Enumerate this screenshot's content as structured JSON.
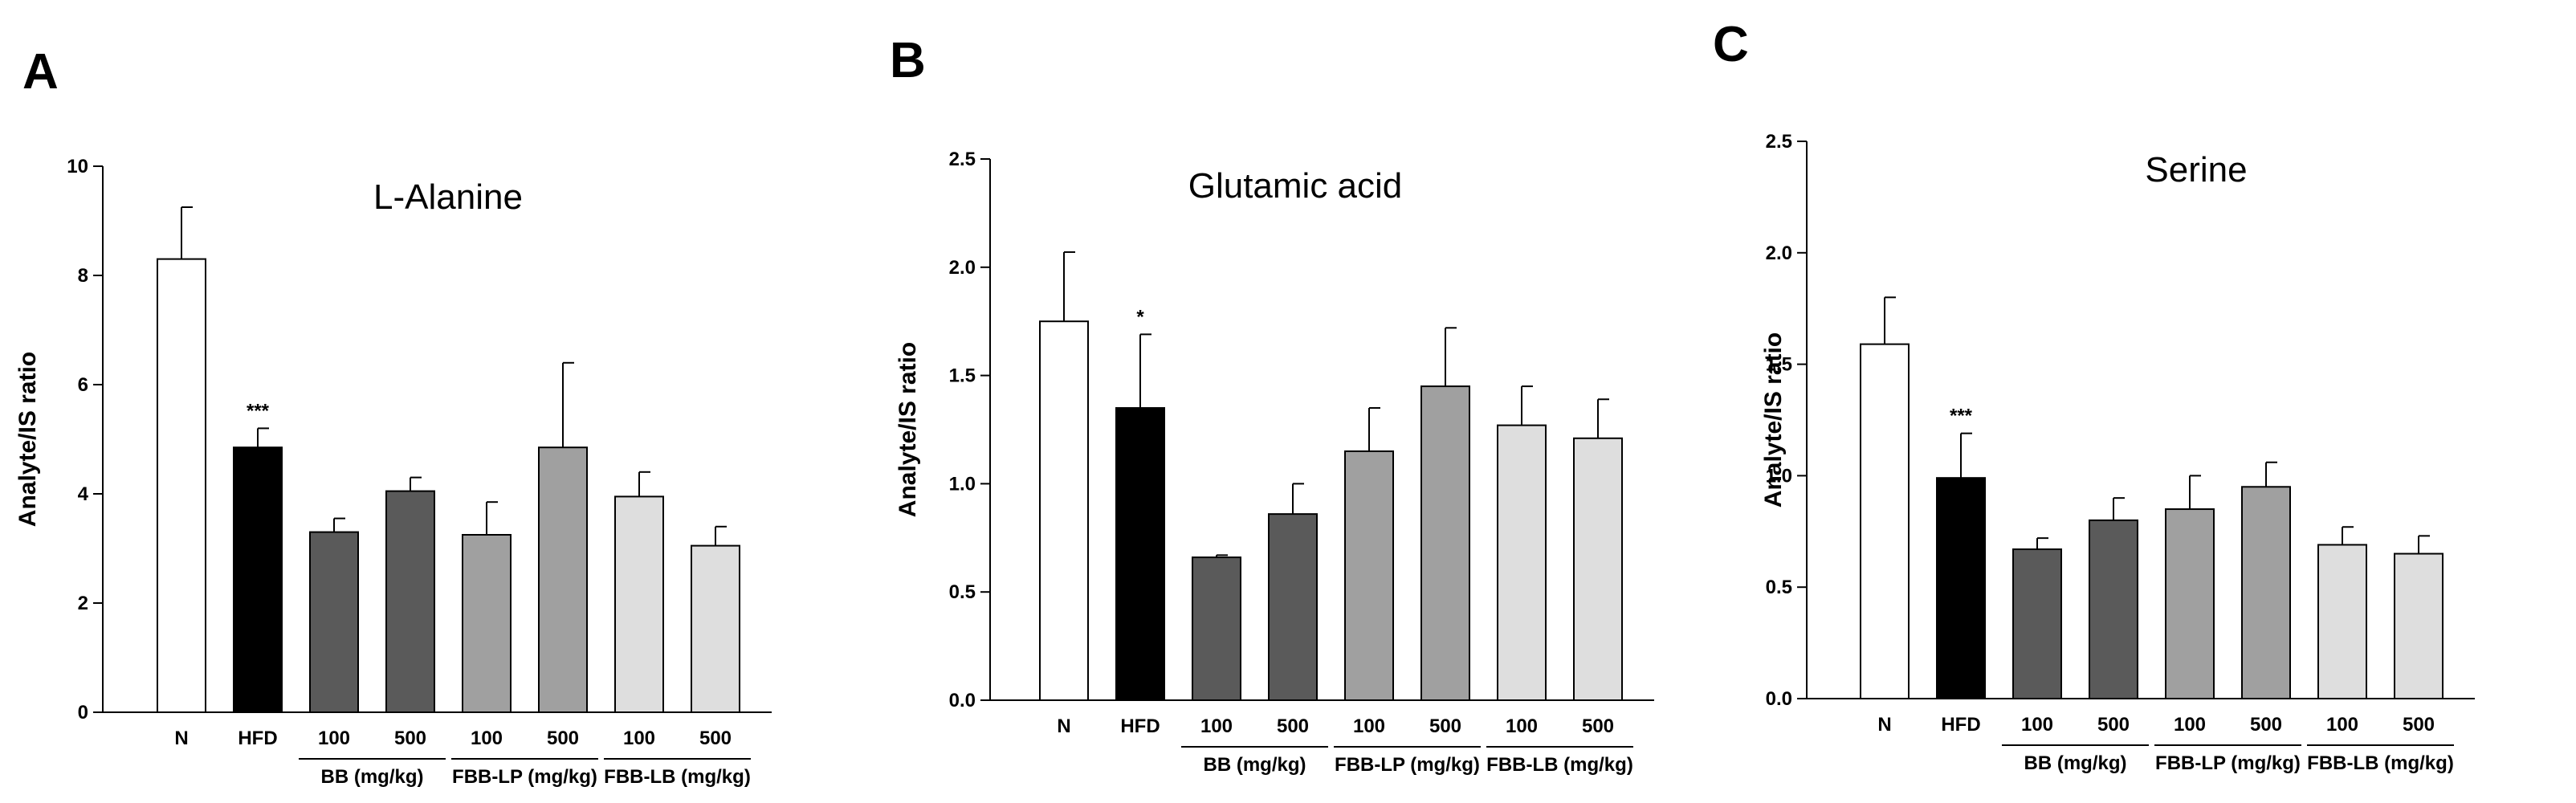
{
  "chart_data": [
    {
      "type": "bar",
      "panel": "A",
      "title": "L-Alanine",
      "ylabel": "Analyte/IS ratio",
      "ylim": [
        0,
        10
      ],
      "yticks": [
        0,
        2,
        4,
        6,
        8,
        10
      ],
      "yticklabels": [
        "0",
        "2",
        "4",
        "6",
        "8",
        "10"
      ],
      "categories": [
        "N",
        "HFD",
        "100",
        "500",
        "100",
        "500",
        "100",
        "500"
      ],
      "values": [
        8.3,
        4.85,
        3.3,
        4.05,
        3.25,
        4.85,
        3.95,
        3.05
      ],
      "errors": [
        0.95,
        0.35,
        0.25,
        0.25,
        0.6,
        1.55,
        0.45,
        0.35
      ],
      "annotations": [
        "",
        "***",
        "",
        "",
        "",
        "",
        "",
        ""
      ],
      "colors": [
        "#ffffff",
        "#000000",
        "#5a5a5a",
        "#5a5a5a",
        "#a0a0a0",
        "#a0a0a0",
        "#dedede",
        "#dedede"
      ],
      "groups": [
        {
          "label": "BB (mg/kg)",
          "start": 2,
          "end": 3
        },
        {
          "label": "FBB-LP (mg/kg)",
          "start": 4,
          "end": 5
        },
        {
          "label": "FBB-LB (mg/kg)",
          "start": 6,
          "end": 7
        }
      ]
    },
    {
      "type": "bar",
      "panel": "B",
      "title": "Glutamic acid",
      "ylabel": "Analyte/IS ratio",
      "ylim": [
        0,
        2.5
      ],
      "yticks": [
        0,
        0.5,
        1,
        1.5,
        2,
        2.5
      ],
      "yticklabels": [
        "0.0",
        "0.5",
        "1.0",
        "1.5",
        "2.0",
        "2.5"
      ],
      "categories": [
        "N",
        "HFD",
        "100",
        "500",
        "100",
        "500",
        "100",
        "500"
      ],
      "values": [
        1.75,
        1.35,
        0.66,
        0.86,
        1.15,
        1.45,
        1.27,
        1.21
      ],
      "errors": [
        0.32,
        0.34,
        0.01,
        0.14,
        0.2,
        0.27,
        0.18,
        0.18
      ],
      "annotations": [
        "",
        "*",
        "",
        "",
        "",
        "",
        "",
        ""
      ],
      "colors": [
        "#ffffff",
        "#000000",
        "#5a5a5a",
        "#5a5a5a",
        "#a0a0a0",
        "#a0a0a0",
        "#dedede",
        "#dedede"
      ],
      "groups": [
        {
          "label": "BB (mg/kg)",
          "start": 2,
          "end": 3
        },
        {
          "label": "FBB-LP (mg/kg)",
          "start": 4,
          "end": 5
        },
        {
          "label": "FBB-LB (mg/kg)",
          "start": 6,
          "end": 7
        }
      ]
    },
    {
      "type": "bar",
      "panel": "C",
      "title": "Serine",
      "ylabel": "Analyte/IS ratio",
      "ylim": [
        0,
        2.5
      ],
      "yticks": [
        0,
        0.5,
        1,
        1.5,
        2,
        2.5
      ],
      "yticklabels": [
        "0.0",
        "0.5",
        "1.0",
        "1.5",
        "2.0",
        "2.5"
      ],
      "categories": [
        "N",
        "HFD",
        "100",
        "500",
        "100",
        "500",
        "100",
        "500"
      ],
      "values": [
        1.59,
        0.99,
        0.67,
        0.8,
        0.85,
        0.95,
        0.69,
        0.65
      ],
      "errors": [
        0.21,
        0.2,
        0.05,
        0.1,
        0.15,
        0.11,
        0.08,
        0.08
      ],
      "annotations": [
        "",
        "***",
        "",
        "",
        "",
        "",
        "",
        ""
      ],
      "colors": [
        "#ffffff",
        "#000000",
        "#5a5a5a",
        "#5a5a5a",
        "#a0a0a0",
        "#a0a0a0",
        "#dedede",
        "#dedede"
      ],
      "groups": [
        {
          "label": "BB (mg/kg)",
          "start": 2,
          "end": 3
        },
        {
          "label": "FBB-LP (mg/kg)",
          "start": 4,
          "end": 5
        },
        {
          "label": "FBB-LB (mg/kg)",
          "start": 6,
          "end": 7
        }
      ]
    }
  ]
}
